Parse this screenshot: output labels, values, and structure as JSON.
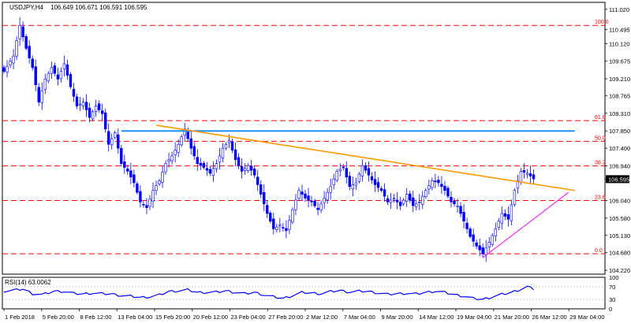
{
  "header": {
    "symbol_timeframe": "USDJPY,H4",
    "ohlc": "106.649 106.671 106.591 106.595"
  },
  "rsi_header": {
    "label": "RSI(14) 63.0062"
  },
  "current_price": "106.595",
  "colors": {
    "bull_body": "#ffffff",
    "bear_body": "#0000ff",
    "candle_outline": "#0000ff",
    "fib_line": "#ff0000",
    "fib_label": "#ff0000",
    "horizontal_resistance": "#1e90ff",
    "trendline": "#ff9900",
    "support_line": "#ff00ff",
    "rsi_line": "#0000ff",
    "axis": "#000000",
    "price_box_bg": "#000000",
    "price_box_text": "#ffffff"
  },
  "chart_data": [
    {
      "type": "candlestick",
      "symbol": "USDJPY",
      "timeframe": "H4",
      "price_scale": {
        "ylim": [
          104.12,
          111.2
        ],
        "ticks": [
          "111.020",
          "110.495",
          "110.120",
          "109.675",
          "109.210",
          "108.765",
          "108.310",
          "107.850",
          "107.400",
          "106.940",
          "106.595",
          "106.040",
          "105.580",
          "105.130",
          "104.680",
          "104.220"
        ]
      },
      "x_ticks": [
        "1 Feb 2018",
        "5 Feb 20:00",
        "8 Feb 12:00",
        "13 Feb 04:00",
        "15 Feb 20:00",
        "20 Feb 12:00",
        "23 Feb 04:00",
        "27 Feb 20:00",
        "2 Mar 12:00",
        "7 Mar 04:00",
        "9 Mar 20:00",
        "14 Mar 12:00",
        "19 Mar 04:00",
        "21 Mar 20:00",
        "26 Mar 12:00",
        "29 Mar 04:00"
      ],
      "path_close": [
        [
          0,
          109.4
        ],
        [
          3,
          109.8
        ],
        [
          5,
          110.6
        ],
        [
          7,
          110.0
        ],
        [
          9,
          109.5
        ],
        [
          11,
          108.6
        ],
        [
          13,
          109.2
        ],
        [
          15,
          109.5
        ],
        [
          17,
          109.2
        ],
        [
          19,
          109.6
        ],
        [
          21,
          109.0
        ],
        [
          23,
          108.5
        ],
        [
          25,
          108.6
        ],
        [
          27,
          108.2
        ],
        [
          29,
          108.5
        ],
        [
          31,
          108.3
        ],
        [
          33,
          107.5
        ],
        [
          35,
          107.8
        ],
        [
          37,
          107.0
        ],
        [
          39,
          106.8
        ],
        [
          41,
          106.5
        ],
        [
          43,
          106.0
        ],
        [
          45,
          105.85
        ],
        [
          47,
          106.3
        ],
        [
          49,
          106.55
        ],
        [
          51,
          107.0
        ],
        [
          53,
          107.2
        ],
        [
          55,
          107.5
        ],
        [
          57,
          107.9
        ],
        [
          59,
          107.4
        ],
        [
          61,
          107.0
        ],
        [
          63,
          106.9
        ],
        [
          65,
          106.75
        ],
        [
          67,
          107.0
        ],
        [
          69,
          107.4
        ],
        [
          71,
          107.6
        ],
        [
          73,
          107.1
        ],
        [
          75,
          106.8
        ],
        [
          77,
          106.95
        ],
        [
          79,
          106.7
        ],
        [
          81,
          106.2
        ],
        [
          83,
          105.7
        ],
        [
          85,
          105.3
        ],
        [
          87,
          105.4
        ],
        [
          89,
          105.25
        ],
        [
          91,
          105.8
        ],
        [
          93,
          106.3
        ],
        [
          95,
          106.1
        ],
        [
          97,
          106.0
        ],
        [
          99,
          105.8
        ],
        [
          101,
          106.1
        ],
        [
          103,
          106.4
        ],
        [
          105,
          106.8
        ],
        [
          107,
          106.9
        ],
        [
          109,
          106.4
        ],
        [
          111,
          106.5
        ],
        [
          113,
          106.95
        ],
        [
          115,
          106.7
        ],
        [
          117,
          106.45
        ],
        [
          119,
          106.3
        ],
        [
          121,
          106.0
        ],
        [
          123,
          106.1
        ],
        [
          125,
          105.9
        ],
        [
          127,
          106.2
        ],
        [
          129,
          105.9
        ],
        [
          131,
          106.0
        ],
        [
          133,
          106.3
        ],
        [
          135,
          106.55
        ],
        [
          137,
          106.5
        ],
        [
          139,
          106.3
        ],
        [
          141,
          106.0
        ],
        [
          143,
          105.9
        ],
        [
          145,
          105.5
        ],
        [
          147,
          105.1
        ],
        [
          149,
          104.85
        ],
        [
          151,
          104.65
        ],
        [
          153,
          104.95
        ],
        [
          155,
          105.3
        ],
        [
          157,
          105.7
        ],
        [
          159,
          105.55
        ],
        [
          161,
          106.3
        ],
        [
          163,
          106.8
        ],
        [
          165,
          106.75
        ],
        [
          167,
          106.6
        ]
      ],
      "fibonacci_levels": [
        {
          "label": "100.0",
          "price": 110.6
        },
        {
          "label": "61.8",
          "price": 108.12
        },
        {
          "label": "50.0",
          "price": 107.58
        },
        {
          "label": "38.2",
          "price": 106.94
        },
        {
          "label": "23.6",
          "price": 106.04
        },
        {
          "label": "0.0",
          "price": 104.65
        }
      ],
      "horizontal_resistance": {
        "price": 107.85,
        "from": 37,
        "to": 180
      },
      "trendline": {
        "from": [
          48,
          108.0
        ],
        "to": [
          180,
          106.3
        ]
      },
      "support_line": {
        "from": [
          151,
          104.55
        ],
        "to": [
          178,
          106.25
        ]
      },
      "last_price": 106.595
    },
    {
      "type": "line",
      "indicator": "RSI",
      "period": 14,
      "last_value": 63.0062,
      "levels": [
        70,
        30
      ],
      "ylim": [
        0,
        100
      ],
      "ticks": [
        "100",
        "70",
        "30",
        "0"
      ],
      "path": [
        [
          0,
          56
        ],
        [
          4,
          60
        ],
        [
          6,
          63
        ],
        [
          9,
          48
        ],
        [
          12,
          45
        ],
        [
          16,
          56
        ],
        [
          19,
          55
        ],
        [
          22,
          49
        ],
        [
          25,
          47
        ],
        [
          28,
          50
        ],
        [
          31,
          48
        ],
        [
          34,
          47
        ],
        [
          37,
          42
        ],
        [
          40,
          40
        ],
        [
          43,
          36
        ],
        [
          46,
          38
        ],
        [
          49,
          44
        ],
        [
          52,
          55
        ],
        [
          55,
          57
        ],
        [
          58,
          60
        ],
        [
          61,
          52
        ],
        [
          64,
          52
        ],
        [
          67,
          53
        ],
        [
          70,
          57
        ],
        [
          73,
          52
        ],
        [
          76,
          48
        ],
        [
          79,
          52
        ],
        [
          82,
          44
        ],
        [
          85,
          38
        ],
        [
          88,
          33
        ],
        [
          91,
          42
        ],
        [
          94,
          52
        ],
        [
          97,
          50
        ],
        [
          100,
          48
        ],
        [
          103,
          55
        ],
        [
          106,
          58
        ],
        [
          109,
          53
        ],
        [
          112,
          56
        ],
        [
          115,
          55
        ],
        [
          118,
          50
        ],
        [
          121,
          46
        ],
        [
          124,
          48
        ],
        [
          127,
          49
        ],
        [
          130,
          47
        ],
        [
          133,
          52
        ],
        [
          136,
          56
        ],
        [
          139,
          52
        ],
        [
          142,
          45
        ],
        [
          145,
          40
        ],
        [
          148,
          33
        ],
        [
          151,
          30
        ],
        [
          154,
          38
        ],
        [
          157,
          46
        ],
        [
          160,
          52
        ],
        [
          163,
          62
        ],
        [
          165,
          70
        ],
        [
          167,
          63
        ]
      ]
    }
  ]
}
